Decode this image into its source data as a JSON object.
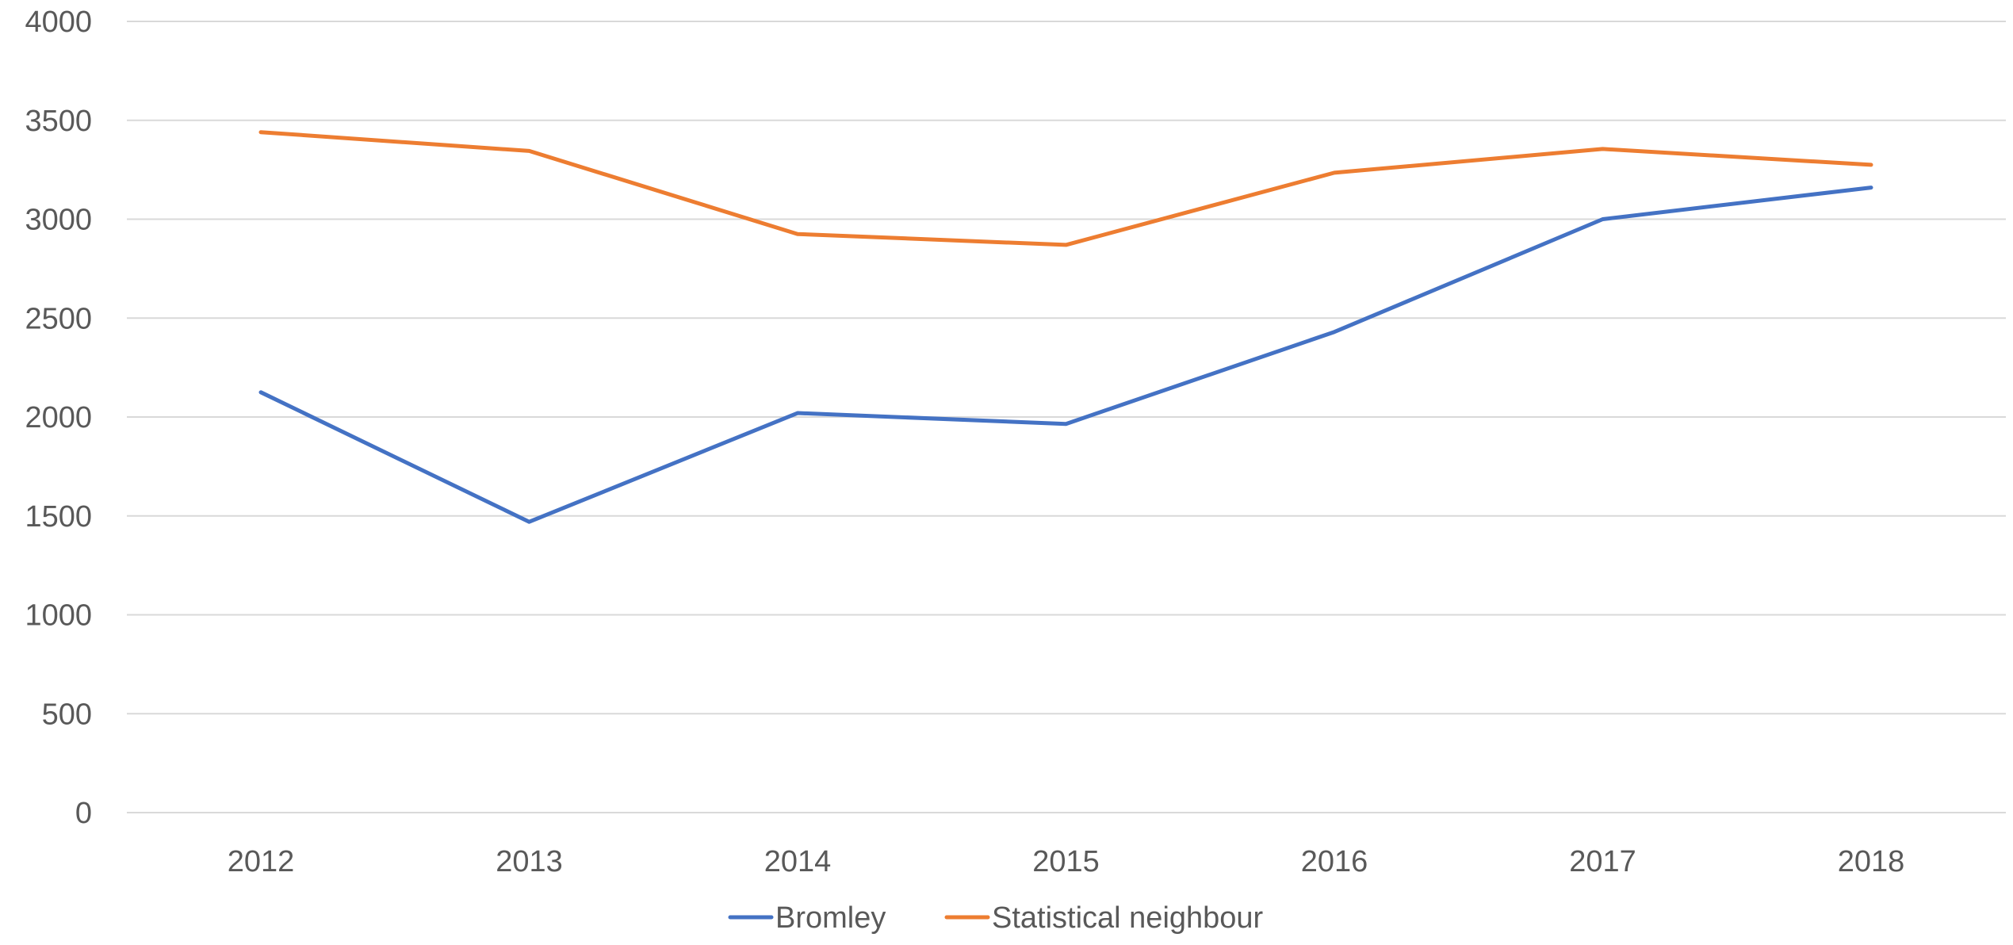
{
  "chart_data": {
    "type": "line",
    "title": "",
    "xlabel": "",
    "ylabel": "",
    "categories": [
      "2012",
      "2013",
      "2014",
      "2015",
      "2016",
      "2017",
      "2018"
    ],
    "series": [
      {
        "name": "Bromley",
        "color": "#4472c4",
        "values": [
          2125,
          1470,
          2020,
          1965,
          2430,
          3000,
          3160
        ]
      },
      {
        "name": "Statistical neighbour",
        "color": "#ed7d31",
        "values": [
          3440,
          3345,
          2925,
          2870,
          3235,
          3355,
          3275
        ]
      }
    ],
    "ylim": [
      0,
      4000
    ],
    "yticks": [
      0,
      500,
      1000,
      1500,
      2000,
      2500,
      3000,
      3500,
      4000
    ],
    "grid": true,
    "legend_position": "bottom"
  }
}
